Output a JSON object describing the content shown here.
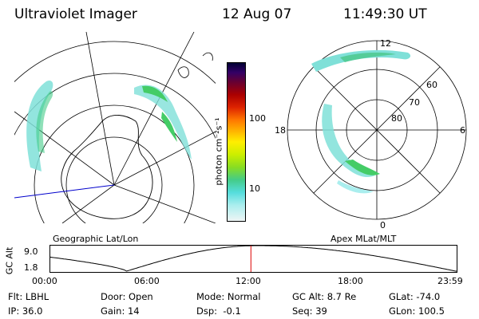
{
  "header": {
    "instrument": "Ultraviolet Imager",
    "date": "12 Aug 07",
    "time": "11:49:30 UT"
  },
  "colorbar": {
    "label": "photon cm⁻²s⁻¹",
    "ticks": [
      "100",
      "10"
    ]
  },
  "left_panel": {
    "label": "Geographic Lat/Lon"
  },
  "right_panel": {
    "label": "Apex MLat/MLT",
    "mlt_labels": {
      "top": "12",
      "bottom": "0",
      "left": "18",
      "right": "6"
    },
    "lat_labels": [
      "60",
      "70",
      "80"
    ]
  },
  "altitude_plot": {
    "ylabel": "GC Alt",
    "ymax": "9.0",
    "ymin": "1.8",
    "xticks": [
      "00:00",
      "06:00",
      "12:00",
      "18:00",
      "23:59"
    ],
    "current_time_hour": 11.825
  },
  "info": {
    "filter_label": "Flt: LBHL",
    "ip_label": "IP: 36.0",
    "door_label": "Door: Open",
    "gain_label": "Gain: 14",
    "mode_label": "Mode: Normal",
    "dsp_label": "Dsp:  -0.1",
    "gcalt_label": "GC Alt: 8.7 Re",
    "seq_label": "Seq: 39",
    "glat_label": "GLat: -74.0",
    "glon_label": "GLon: 100.5"
  },
  "colors": {
    "aurora_low": "#7fe0d8",
    "aurora_high": "#44cc66",
    "marker": "#dd0000",
    "blue_line": "#0000cc"
  }
}
